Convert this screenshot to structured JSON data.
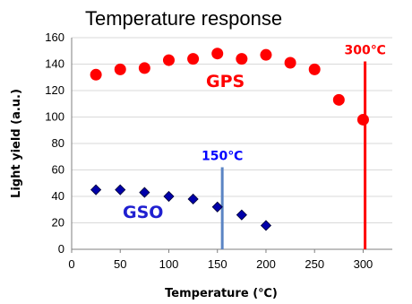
{
  "chart_data": {
    "type": "scatter",
    "title": "Temperature response",
    "xlabel": "Temperature (℃)",
    "ylabel": "Light yield (a.u.)",
    "xlim": [
      0,
      330
    ],
    "ylim": [
      0,
      160
    ],
    "xticks": [
      0,
      50,
      100,
      150,
      200,
      250,
      300
    ],
    "yticks": [
      0,
      20,
      40,
      60,
      80,
      100,
      120,
      140,
      160
    ],
    "grid": true,
    "series": [
      {
        "name": "GPS",
        "marker": "circle",
        "color": "#ff0000",
        "x": [
          25,
          50,
          75,
          100,
          125,
          150,
          175,
          200,
          225,
          250,
          275,
          300
        ],
        "y": [
          132,
          136,
          137,
          143,
          144,
          148,
          144,
          147,
          141,
          136,
          113,
          98
        ]
      },
      {
        "name": "GSO",
        "marker": "diamond",
        "color": "#0000aa",
        "x": [
          25,
          50,
          75,
          100,
          125,
          150,
          175,
          200
        ],
        "y": [
          45,
          45,
          43,
          40,
          38,
          32,
          26,
          18
        ]
      }
    ],
    "annotations": [
      {
        "label": "300℃",
        "x": 302,
        "y_top": 142,
        "color": "#ff0000",
        "line_color": "#ff0000"
      },
      {
        "label": "150℃",
        "x": 155,
        "y_top": 62,
        "color": "#0000ff",
        "line_color": "#5b84c4"
      }
    ]
  }
}
